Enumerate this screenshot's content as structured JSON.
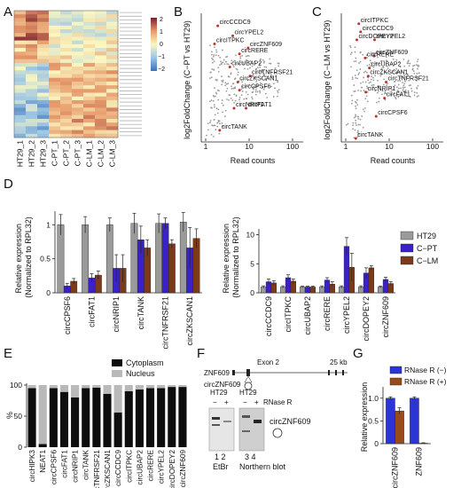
{
  "panels": {
    "A": "A",
    "B": "B",
    "C": "C",
    "D": "D",
    "E": "E",
    "F": "F",
    "G": "G"
  },
  "heatmap": {
    "columns": [
      "HT29_1",
      "HT29_2",
      "HT29_3",
      "C-PT_1",
      "C-PT_2",
      "C-PT_3",
      "C-LM_1",
      "C-LM_2",
      "C-LM_3"
    ],
    "scale_ticks": [
      "2",
      "1",
      "0",
      "−1",
      "−2"
    ],
    "colors": {
      "high": "#7a1f2b",
      "mid": "#fbf7c0",
      "low": "#3e6fb6"
    }
  },
  "chart_data": [
    {
      "panel": "B",
      "type": "scatter",
      "xlabel": "Read counts",
      "ylabel": "log2FoldChange (C−PT vs HT29)",
      "x_ticks": [
        "1",
        "10",
        "100"
      ],
      "x_scale": "log",
      "points": [
        {
          "label": "circCCDC9",
          "x": 1.9,
          "y": 2.6
        },
        {
          "label": "circITPKC",
          "x": 1.6,
          "y": 1.7
        },
        {
          "label": "circYPEL2",
          "x": 4.2,
          "y": 2.1
        },
        {
          "label": "circZNF609",
          "x": 9.5,
          "y": 1.5
        },
        {
          "label": "circRERE",
          "x": 6.0,
          "y": 1.2
        },
        {
          "label": "circUBAP2",
          "x": 3.6,
          "y": 0.55
        },
        {
          "label": "circTNFRSF21",
          "x": 10.5,
          "y": 0.1
        },
        {
          "label": "circZKSCAN1",
          "x": 5.5,
          "y": -0.2
        },
        {
          "label": "circCPSF6",
          "x": 6.0,
          "y": -0.6
        },
        {
          "label": "circNRIP1",
          "x": 4.5,
          "y": -1.5
        },
        {
          "label": "circFAT1",
          "x": 8.5,
          "y": -1.5
        },
        {
          "label": "circTANK",
          "x": 2.1,
          "y": -2.6
        }
      ]
    },
    {
      "panel": "C",
      "type": "scatter",
      "xlabel": "Read counts",
      "ylabel": "log2FoldChange (C−LM vs HT29)",
      "x_ticks": [
        "1",
        "10",
        "100"
      ],
      "x_scale": "log",
      "points": [
        {
          "label": "circITPKC",
          "x": 2.0,
          "y": 2.7
        },
        {
          "label": "circCCDC9",
          "x": 2.2,
          "y": 2.3
        },
        {
          "label": "circYPEL2",
          "x": 4.6,
          "y": 1.9
        },
        {
          "label": "circDOPEY2",
          "x": 1.8,
          "y": 1.9
        },
        {
          "label": "circZNF609",
          "x": 4.5,
          "y": 1.1
        },
        {
          "label": "circRERE",
          "x": 2.8,
          "y": 1.0
        },
        {
          "label": "circUBAP2",
          "x": 3.5,
          "y": 0.5
        },
        {
          "label": "circZKSCAN1",
          "x": 3.3,
          "y": 0.1
        },
        {
          "label": "circTNFRSF21",
          "x": 8.5,
          "y": -0.2
        },
        {
          "label": "circNRIP1",
          "x": 2.9,
          "y": -0.7
        },
        {
          "label": "circFAT1",
          "x": 7.8,
          "y": -1.0
        },
        {
          "label": "circCPSF6",
          "x": 5.0,
          "y": -1.9
        },
        {
          "label": "circTANK",
          "x": 1.7,
          "y": -3.0
        }
      ]
    },
    {
      "panel": "D-left",
      "type": "bar",
      "ylabel": "Relative expression (Normalized to RPL32)",
      "ylim": [
        0,
        1.2
      ],
      "y_ticks": [
        "0",
        "0.5",
        "1"
      ],
      "categories": [
        "circCPSF6",
        "circFAT1",
        "circNRIP1",
        "circTANK",
        "circTNFRSF21",
        "circZKSCAN1"
      ],
      "series": [
        {
          "name": "HT29",
          "values": [
            1.0,
            1.0,
            1.0,
            1.02,
            1.02,
            1.04
          ]
        },
        {
          "name": "C−PT",
          "values": [
            0.1,
            0.22,
            0.36,
            0.78,
            1.02,
            0.66
          ]
        },
        {
          "name": "C−LM",
          "values": [
            0.17,
            0.26,
            0.36,
            0.66,
            0.72,
            0.8
          ]
        }
      ],
      "errors": [
        [
          0.15,
          0.12,
          0.1,
          0.15,
          0.14,
          0.14
        ],
        [
          0.04,
          0.06,
          0.2,
          0.2,
          0.08,
          0.3
        ],
        [
          0.04,
          0.06,
          0.2,
          0.12,
          0.06,
          0.14
        ]
      ]
    },
    {
      "panel": "D-right",
      "type": "bar",
      "ylabel": "Relative expression (Normalized to RPL32)",
      "ylim": [
        0,
        11
      ],
      "y_ticks": [
        "0",
        "5",
        "10"
      ],
      "categories": [
        "circCCDC9",
        "circITPKC",
        "circUBAP2",
        "circRERE",
        "circYPEL2",
        "circDOPEY2",
        "circZNF609"
      ],
      "legend": [
        "HT29",
        "C−PT",
        "C−LM"
      ],
      "legend_position": "top-right",
      "series": [
        {
          "name": "HT29",
          "values": [
            1.0,
            1.0,
            1.0,
            1.0,
            1.0,
            1.0,
            1.0
          ]
        },
        {
          "name": "C−PT",
          "values": [
            1.9,
            2.6,
            1.0,
            2.2,
            8.0,
            3.4,
            2.3
          ]
        },
        {
          "name": "C−LM",
          "values": [
            1.7,
            2.0,
            1.0,
            1.5,
            4.4,
            4.3,
            1.6
          ]
        }
      ],
      "errors": [
        [
          0.2,
          0.2,
          0.15,
          0.2,
          0.2,
          0.2,
          0.15
        ],
        [
          0.5,
          0.5,
          0.15,
          0.4,
          1.5,
          0.9,
          0.4
        ],
        [
          0.4,
          0.4,
          0.15,
          0.4,
          2.4,
          0.4,
          0.3
        ]
      ]
    },
    {
      "panel": "E",
      "type": "bar",
      "ylabel": "%",
      "ylim": [
        0,
        100
      ],
      "y_ticks": [
        "0",
        "50",
        "100"
      ],
      "legend": [
        "Cytoplasm",
        "Nucleus"
      ],
      "categories": [
        "circHIPK3",
        "NEAT1",
        "circCPSF6",
        "circFAT1",
        "circNRIP1",
        "circTANK",
        "circTNFRSF21",
        "circZKSCAN1",
        "circCCDC9",
        "circITPKC",
        "circUBAP2",
        "circRERE",
        "circYPEL2",
        "circDOPEY2",
        "circZNF609"
      ],
      "series": [
        {
          "name": "Cytoplasm",
          "values": [
            95,
            5,
            95,
            89,
            80,
            95,
            96,
            86,
            56,
            90,
            93,
            95,
            95,
            97,
            97
          ]
        },
        {
          "name": "Nucleus",
          "values": [
            5,
            95,
            5,
            11,
            20,
            5,
            4,
            14,
            44,
            10,
            7,
            5,
            5,
            3,
            3
          ]
        }
      ]
    },
    {
      "panel": "G",
      "type": "bar",
      "ylabel": "Relative expression",
      "ylim": [
        0,
        1.25
      ],
      "y_ticks": [
        "0",
        "0.5",
        "1.0"
      ],
      "legend": [
        "RNase R (−)",
        "RNase R (+)"
      ],
      "categories": [
        "circZNF609",
        "ZNF609"
      ],
      "series": [
        {
          "name": "RNase R (−)",
          "values": [
            1.0,
            1.0
          ]
        },
        {
          "name": "RNase R (+)",
          "values": [
            0.72,
            0.01
          ]
        }
      ],
      "errors": [
        [
          0.03,
          0.03
        ],
        [
          0.07,
          0.01
        ]
      ]
    }
  ],
  "series_colors": {
    "HT29": "#9a9a9a",
    "C−PT": "#3a22c8",
    "C−LM": "#7b3b1a",
    "Cytoplasm": "#0d0d0d",
    "Nucleus": "#b9b9b9",
    "RNase R (−)": "#2b35d6",
    "RNase R (+)": "#9b4a1e"
  },
  "northern": {
    "gene_label": "ZNF609",
    "circ_label": "circZNF609",
    "exon_label": "Exon 2",
    "scale_label": "25 kb",
    "lane_group_1": "HT29",
    "lane_group_2": "HT29",
    "treat_label": "RNase R",
    "minus": "−",
    "plus": "+",
    "band_label": "circZNF609",
    "lanes_1": "1 2",
    "lanes_2": "3 4",
    "caption_1": "EtBr",
    "caption_2": "Northern blot"
  }
}
